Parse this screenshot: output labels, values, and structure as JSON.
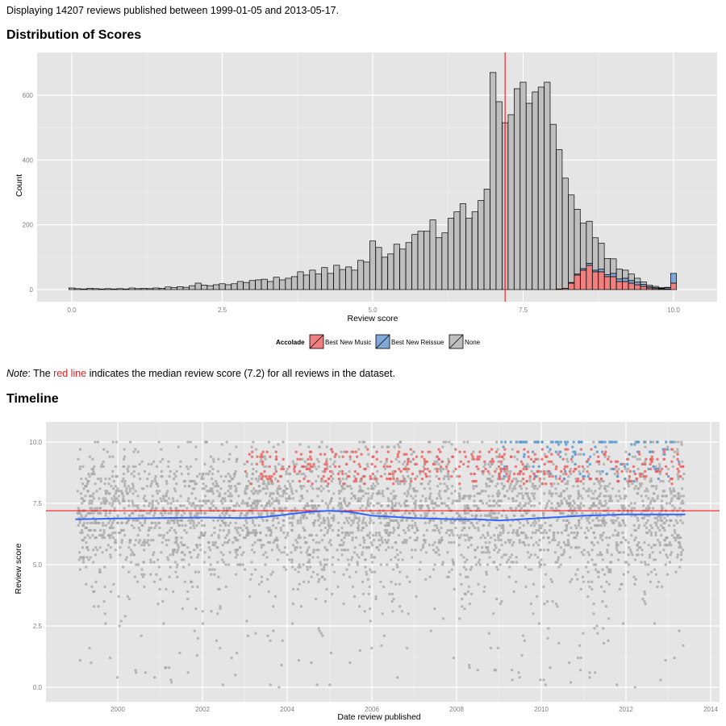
{
  "intro_text": "Displaying 14207 reviews published between 1999-01-05 and 2013-05-17.",
  "headings": {
    "distribution": "Distribution of Scores",
    "timeline": "Timeline"
  },
  "note": {
    "label": "Note",
    "before": ": The ",
    "highlight": "red line",
    "after": " indicates the median review score (7.2) for all reviews in the dataset."
  },
  "colors": {
    "best_new_music": "#f08080",
    "best_new_reissue": "#80a8d8",
    "none": "#bfbfbf",
    "median_line": "#ff0000",
    "smooth_line": "#3366ff",
    "panel": "#e5e5e5"
  },
  "chart_data": [
    {
      "type": "bar",
      "stacked": true,
      "xlabel": "Review score",
      "ylabel": "Count",
      "xlim": [
        0,
        10
      ],
      "ylim": [
        0,
        680
      ],
      "x_ticks": [
        "0.0",
        "2.5",
        "5.0",
        "7.5",
        "10.0"
      ],
      "y_ticks": [
        "0",
        "200",
        "400",
        "600"
      ],
      "median": 7.2,
      "legend": {
        "title": "Accolade",
        "placement": "bottom",
        "entries": [
          "Best New Music",
          "Best New Reissue",
          "None"
        ]
      },
      "series": [
        {
          "name": "None",
          "x": [
            0.0,
            0.1,
            0.2,
            0.3,
            0.4,
            0.5,
            0.6,
            0.7,
            0.8,
            0.9,
            1.0,
            1.1,
            1.2,
            1.3,
            1.4,
            1.5,
            1.6,
            1.7,
            1.8,
            1.9,
            2.0,
            2.1,
            2.2,
            2.3,
            2.4,
            2.5,
            2.6,
            2.7,
            2.8,
            2.9,
            3.0,
            3.1,
            3.2,
            3.3,
            3.4,
            3.5,
            3.6,
            3.7,
            3.8,
            3.9,
            4.0,
            4.1,
            4.2,
            4.3,
            4.4,
            4.5,
            4.6,
            4.7,
            4.8,
            4.9,
            5.0,
            5.1,
            5.2,
            5.3,
            5.4,
            5.5,
            5.6,
            5.7,
            5.8,
            5.9,
            6.0,
            6.1,
            6.2,
            6.3,
            6.4,
            6.5,
            6.6,
            6.7,
            6.8,
            6.9,
            7.0,
            7.1,
            7.2,
            7.3,
            7.4,
            7.5,
            7.6,
            7.7,
            7.8,
            7.9,
            8.0,
            8.1,
            8.2,
            8.3,
            8.4,
            8.5,
            8.6,
            8.7,
            8.8,
            8.9,
            9.0,
            9.1,
            9.2,
            9.3,
            9.4,
            9.5,
            9.6,
            9.7,
            9.8,
            9.9,
            10.0
          ],
          "values": [
            5,
            3,
            2,
            4,
            3,
            2,
            3,
            2,
            3,
            2,
            5,
            3,
            4,
            3,
            5,
            4,
            8,
            6,
            9,
            7,
            12,
            20,
            14,
            12,
            15,
            18,
            15,
            18,
            25,
            22,
            28,
            30,
            32,
            25,
            38,
            30,
            35,
            40,
            55,
            45,
            60,
            48,
            68,
            50,
            75,
            62,
            70,
            60,
            90,
            85,
            150,
            130,
            100,
            110,
            140,
            125,
            145,
            170,
            180,
            180,
            215,
            160,
            175,
            220,
            240,
            265,
            220,
            240,
            275,
            310,
            670,
            580,
            515,
            540,
            620,
            640,
            575,
            610,
            625,
            640,
            510,
            430,
            340,
            270,
            200,
            140,
            130,
            100,
            80,
            50,
            45,
            30,
            25,
            20,
            12,
            8,
            5,
            4,
            2,
            1,
            0
          ]
        },
        {
          "name": "Best New Reissue",
          "x": [
            8.3,
            8.4,
            8.5,
            8.6,
            8.7,
            8.8,
            8.9,
            9.0,
            9.1,
            9.2,
            9.3,
            9.4,
            9.5,
            9.6,
            9.7,
            9.8,
            9.9,
            10.0
          ],
          "values": [
            2,
            3,
            5,
            6,
            5,
            8,
            6,
            10,
            8,
            10,
            8,
            8,
            6,
            4,
            3,
            2,
            4,
            30
          ]
        },
        {
          "name": "Best New Music",
          "x": [
            8.1,
            8.2,
            8.3,
            8.4,
            8.5,
            8.6,
            8.7,
            8.8,
            8.9,
            9.0,
            9.1,
            9.2,
            9.3,
            9.4,
            9.5,
            9.6,
            9.7,
            9.8,
            9.9,
            10.0
          ],
          "values": [
            2,
            4,
            20,
            45,
            60,
            75,
            55,
            55,
            40,
            40,
            25,
            25,
            20,
            15,
            10,
            5,
            3,
            2,
            2,
            20
          ]
        }
      ]
    },
    {
      "type": "scatter",
      "xlabel": "Date review published",
      "ylabel": "Review score",
      "xlim": [
        1998.2,
        2014.2
      ],
      "ylim": [
        -0.3,
        10.5
      ],
      "x_ticks": [
        "2000",
        "2002",
        "2004",
        "2006",
        "2008",
        "2010",
        "2012",
        "2014"
      ],
      "y_ticks": [
        "0.0",
        "2.5",
        "5.0",
        "7.5",
        "10.0"
      ],
      "median": 7.2,
      "smooth": {
        "x": [
          1999.0,
          2000.0,
          2001.0,
          2002.0,
          2003.0,
          2003.5,
          2004.0,
          2004.5,
          2005.0,
          2005.5,
          2006.0,
          2007.0,
          2008.0,
          2008.5,
          2009.0,
          2009.5,
          2010.0,
          2010.5,
          2011.0,
          2012.0,
          2013.0,
          2013.4
        ],
        "values": [
          6.85,
          6.88,
          6.9,
          6.92,
          6.9,
          6.95,
          7.05,
          7.15,
          7.2,
          7.15,
          7.0,
          6.9,
          6.85,
          6.85,
          6.8,
          6.85,
          6.9,
          6.95,
          7.0,
          7.05,
          7.05,
          7.05
        ]
      }
    }
  ]
}
